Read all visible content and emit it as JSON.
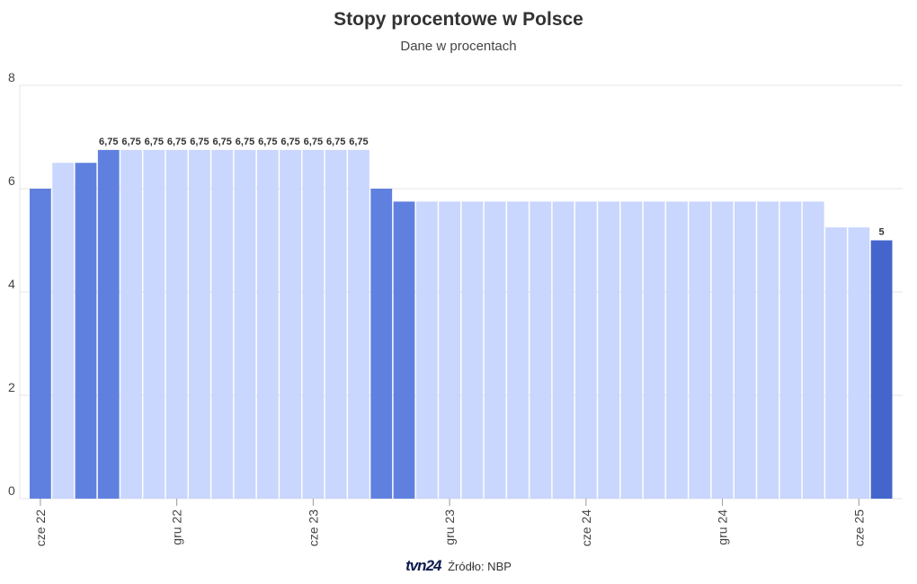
{
  "chart_data": {
    "type": "bar",
    "title": "Stopy procentowe w Polsce",
    "subtitle": "Dane w procentach",
    "xlabel": "",
    "ylabel": "",
    "ylim": [
      0,
      8
    ],
    "yticks": [
      0,
      2,
      4,
      6,
      8
    ],
    "grid": true,
    "legend": "none",
    "x_tick_labels": [
      {
        "index": 0,
        "label": "cze 22"
      },
      {
        "index": 6,
        "label": "gru 22"
      },
      {
        "index": 12,
        "label": "cze 23"
      },
      {
        "index": 18,
        "label": "gru 23"
      },
      {
        "index": 24,
        "label": "cze 24"
      },
      {
        "index": 30,
        "label": "gru 24"
      },
      {
        "index": 36,
        "label": "cze 25"
      }
    ],
    "values": [
      6,
      6.5,
      6.5,
      6.75,
      6.75,
      6.75,
      6.75,
      6.75,
      6.75,
      6.75,
      6.75,
      6.75,
      6.75,
      6.75,
      6.75,
      6,
      5.75,
      5.75,
      5.75,
      5.75,
      5.75,
      5.75,
      5.75,
      5.75,
      5.75,
      5.75,
      5.75,
      5.75,
      5.75,
      5.75,
      5.75,
      5.75,
      5.75,
      5.75,
      5.75,
      5.25,
      5.25,
      5
    ],
    "highlight": [
      "change",
      "light",
      "change",
      "change",
      "light",
      "light",
      "light",
      "light",
      "light",
      "light",
      "light",
      "light",
      "light",
      "light",
      "light",
      "change",
      "change",
      "light",
      "light",
      "light",
      "light",
      "light",
      "light",
      "light",
      "light",
      "light",
      "light",
      "light",
      "light",
      "light",
      "light",
      "light",
      "light",
      "light",
      "light",
      "light",
      "light",
      "latest"
    ],
    "data_labels": [
      {
        "index": 3,
        "text": "6,75"
      },
      {
        "index": 4,
        "text": "6,75"
      },
      {
        "index": 5,
        "text": "6,75"
      },
      {
        "index": 6,
        "text": "6,75"
      },
      {
        "index": 7,
        "text": "6,75"
      },
      {
        "index": 8,
        "text": "6,75"
      },
      {
        "index": 9,
        "text": "6,75"
      },
      {
        "index": 10,
        "text": "6,75"
      },
      {
        "index": 11,
        "text": "6,75"
      },
      {
        "index": 12,
        "text": "6,75"
      },
      {
        "index": 13,
        "text": "6,75"
      },
      {
        "index": 14,
        "text": "6,75"
      },
      {
        "index": 37,
        "text": "5"
      }
    ],
    "colors": {
      "light": "#c9d6fd",
      "change": "#6080e0",
      "latest": "#4466cc",
      "grid": "#e6e6e6",
      "axis_text": "#444444"
    }
  },
  "footer": {
    "logo": "tvn24",
    "source": "Źródło: NBP"
  }
}
